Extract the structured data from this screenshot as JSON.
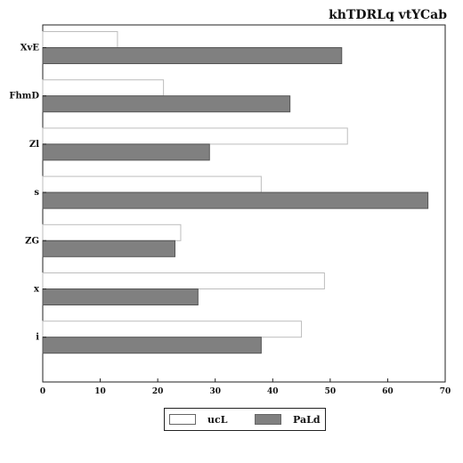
{
  "chart_data": {
    "type": "bar",
    "orientation": "horizontal",
    "title": "khTDRLq vtYCab",
    "xlabel": "",
    "ylabel": "",
    "categories": [
      "XvE",
      "FhmD",
      "Zl",
      "s",
      "ZG",
      "x",
      "i"
    ],
    "series": [
      {
        "name": "ucL",
        "values": [
          13,
          21,
          53,
          38,
          24,
          49,
          45
        ],
        "color": "#ffffff"
      },
      {
        "name": "PaLd",
        "values": [
          52,
          43,
          29,
          67,
          23,
          27,
          38
        ],
        "color": "#808080"
      }
    ],
    "xlim": [
      0,
      70
    ],
    "xticks": [
      0,
      10,
      20,
      30,
      40,
      50,
      60,
      70
    ],
    "grid": false,
    "legend_position": "bottom-center"
  }
}
